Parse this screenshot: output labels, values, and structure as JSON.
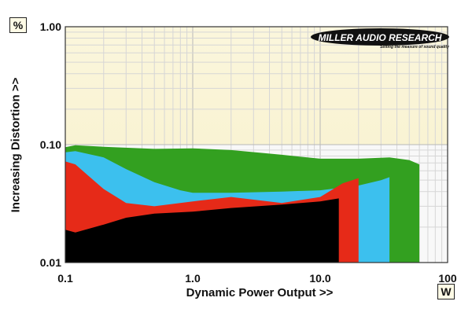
{
  "chart_data": {
    "type": "area",
    "xscale": "log",
    "yscale": "log",
    "xlim": [
      0.1,
      100
    ],
    "ylim": [
      0.01,
      1.0
    ],
    "xlabel": "Dynamic Power Output >>",
    "ylabel": "Increasing Distortion >>",
    "x_unit": "W",
    "y_unit": "%",
    "x_ticks": [
      "0.1",
      "1.0",
      "10.0",
      "100"
    ],
    "y_ticks": [
      "0.01",
      "0.10",
      "1.00"
    ],
    "grid": true,
    "series": [
      {
        "color": "#33a020",
        "points": [
          [
            0.1,
            0.095
          ],
          [
            0.12,
            0.099
          ],
          [
            0.2,
            0.096
          ],
          [
            0.5,
            0.092
          ],
          [
            1.0,
            0.093
          ],
          [
            2.0,
            0.09
          ],
          [
            5.0,
            0.082
          ],
          [
            10,
            0.076
          ],
          [
            20,
            0.076
          ],
          [
            35,
            0.078
          ],
          [
            50,
            0.074
          ],
          [
            60,
            0.068
          ]
        ]
      },
      {
        "color": "#3cc0ee",
        "points": [
          [
            0.1,
            0.086
          ],
          [
            0.12,
            0.088
          ],
          [
            0.2,
            0.078
          ],
          [
            0.3,
            0.062
          ],
          [
            0.5,
            0.048
          ],
          [
            0.8,
            0.041
          ],
          [
            1.0,
            0.039
          ],
          [
            2.0,
            0.039
          ],
          [
            5.0,
            0.04
          ],
          [
            10,
            0.041
          ],
          [
            20,
            0.045
          ],
          [
            30,
            0.05
          ],
          [
            35,
            0.053
          ]
        ]
      },
      {
        "color": "#e62a18",
        "points": [
          [
            0.1,
            0.072
          ],
          [
            0.12,
            0.068
          ],
          [
            0.15,
            0.055
          ],
          [
            0.2,
            0.042
          ],
          [
            0.3,
            0.032
          ],
          [
            0.5,
            0.03
          ],
          [
            1.0,
            0.033
          ],
          [
            2.0,
            0.036
          ],
          [
            5.0,
            0.032
          ],
          [
            10,
            0.036
          ],
          [
            15,
            0.047
          ],
          [
            20,
            0.052
          ]
        ]
      },
      {
        "color": "#000000",
        "points": [
          [
            0.1,
            0.019
          ],
          [
            0.12,
            0.018
          ],
          [
            0.2,
            0.021
          ],
          [
            0.3,
            0.024
          ],
          [
            0.5,
            0.026
          ],
          [
            1.0,
            0.027
          ],
          [
            2.0,
            0.029
          ],
          [
            5.0,
            0.031
          ],
          [
            10,
            0.033
          ],
          [
            14,
            0.035
          ]
        ]
      }
    ]
  },
  "units": {
    "x": "W",
    "y": "%"
  },
  "logo": {
    "brand": "MILLER AUDIO RESEARCH",
    "tagline": "Setting the measure of sound quality"
  }
}
